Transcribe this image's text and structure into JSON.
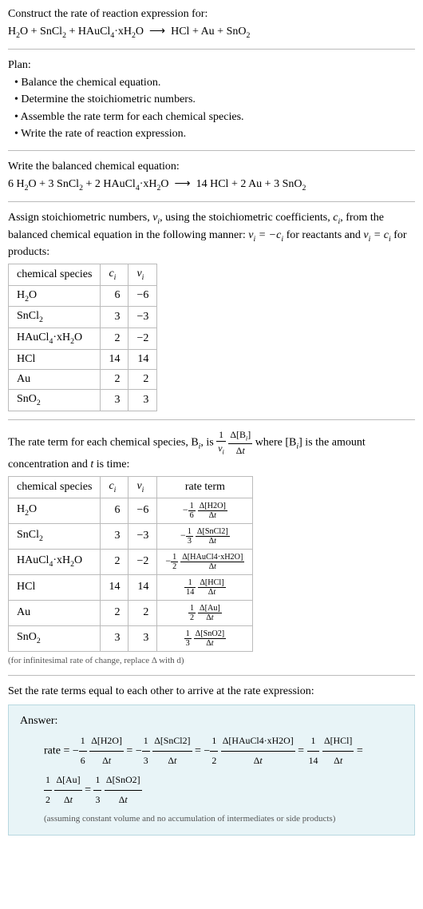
{
  "prompt": {
    "line1": "Construct the rate of reaction expression for:",
    "equation_left": "H₂O + SnCl₂ + HAuCl₄·xH₂O",
    "arrow": "⟶",
    "equation_right": "HCl + Au + SnO₂"
  },
  "plan": {
    "heading": "Plan:",
    "bullets": [
      "Balance the chemical equation.",
      "Determine the stoichiometric numbers.",
      "Assemble the rate term for each chemical species.",
      "Write the rate of reaction expression."
    ]
  },
  "balanced": {
    "heading": "Write the balanced chemical equation:",
    "left": "6 H₂O + 3 SnCl₂ + 2 HAuCl₄·xH₂O",
    "arrow": "⟶",
    "right": "14 HCl + 2 Au + 3 SnO₂"
  },
  "assign": {
    "text1": "Assign stoichiometric numbers, ",
    "nui": "ν",
    "text2": ", using the stoichiometric coefficients, ",
    "ci": "c",
    "text3": ", from the balanced chemical equation in the following manner: ",
    "eq1": "νᵢ = −cᵢ",
    "text4": " for reactants and ",
    "eq2": "νᵢ = cᵢ",
    "text5": " for products:"
  },
  "table1": {
    "headers": [
      "chemical species",
      "cᵢ",
      "νᵢ"
    ],
    "rows": [
      [
        "H₂O",
        "6",
        "−6"
      ],
      [
        "SnCl₂",
        "3",
        "−3"
      ],
      [
        "HAuCl₄·xH₂O",
        "2",
        "−2"
      ],
      [
        "HCl",
        "14",
        "14"
      ],
      [
        "Au",
        "2",
        "2"
      ],
      [
        "SnO₂",
        "3",
        "3"
      ]
    ]
  },
  "rateterm_intro": {
    "text1": "The rate term for each chemical species, B",
    "text2": ", is ",
    "text3": " where [B",
    "text4": "] is the amount concentration and ",
    "text5": " is time:"
  },
  "table2": {
    "headers": [
      "chemical species",
      "cᵢ",
      "νᵢ",
      "rate term"
    ],
    "rows": [
      {
        "species": "H₂O",
        "c": "6",
        "nu": "−6",
        "sign": "−",
        "coef_num": "1",
        "coef_den": "6",
        "delta": "Δ[H2O]"
      },
      {
        "species": "SnCl₂",
        "c": "3",
        "nu": "−3",
        "sign": "−",
        "coef_num": "1",
        "coef_den": "3",
        "delta": "Δ[SnCl2]"
      },
      {
        "species": "HAuCl₄·xH₂O",
        "c": "2",
        "nu": "−2",
        "sign": "−",
        "coef_num": "1",
        "coef_den": "2",
        "delta": "Δ[HAuCl4·xH2O]"
      },
      {
        "species": "HCl",
        "c": "14",
        "nu": "14",
        "sign": "",
        "coef_num": "1",
        "coef_den": "14",
        "delta": "Δ[HCl]"
      },
      {
        "species": "Au",
        "c": "2",
        "nu": "2",
        "sign": "",
        "coef_num": "1",
        "coef_den": "2",
        "delta": "Δ[Au]"
      },
      {
        "species": "SnO₂",
        "c": "3",
        "nu": "3",
        "sign": "",
        "coef_num": "1",
        "coef_den": "3",
        "delta": "Δ[SnO2]"
      }
    ]
  },
  "note": "(for infinitesimal rate of change, replace Δ with d)",
  "final": {
    "heading": "Set the rate terms equal to each other to arrive at the rate expression:",
    "answer_label": "Answer:",
    "rate_label": "rate = ",
    "assumption": "(assuming constant volume and no accumulation of intermediates or side products)"
  },
  "dt": "Δt"
}
